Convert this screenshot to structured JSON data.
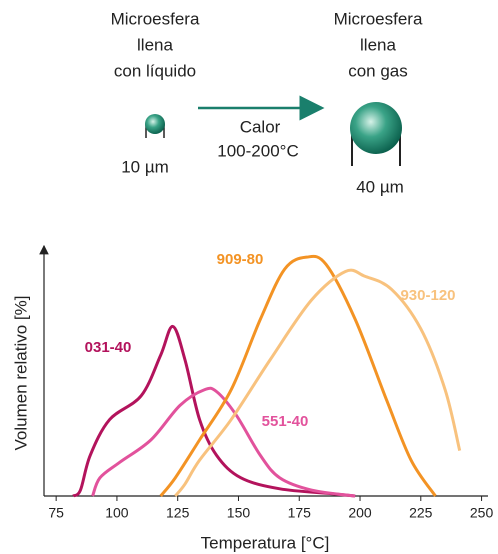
{
  "diagram": {
    "left_label": [
      "Microesfera",
      "llena",
      "con líquido"
    ],
    "right_label": [
      "Microesfera",
      "llena",
      "con gas"
    ],
    "arrow_label": [
      "Calor",
      "100-200°C"
    ],
    "left_size": "10 µm",
    "right_size": "40 µm"
  },
  "chart_data": {
    "type": "line",
    "xlabel": "Temperatura [°C]",
    "ylabel": "Volumen relativo [%]",
    "xlim": [
      70,
      251
    ],
    "ylim": [
      0,
      103
    ],
    "xticks": [
      75,
      100,
      125,
      150,
      175,
      200,
      225,
      250
    ],
    "series": [
      {
        "name": "031-40",
        "color": "#b3135c",
        "x": [
          82,
          85,
          89,
          97,
          110,
          118,
          123,
          128,
          134,
          141,
          151,
          167,
          188,
          198
        ],
        "values": [
          0,
          2.5,
          17,
          32,
          42,
          59,
          71,
          57,
          32,
          17,
          7.6,
          3,
          1,
          0
        ]
      },
      {
        "name": "551-40",
        "color": "#e2529c",
        "x": [
          90,
          93,
          101,
          114,
          126,
          136,
          141,
          149,
          159,
          167,
          180,
          198
        ],
        "values": [
          0,
          7.6,
          14,
          23.5,
          38,
          44.5,
          43.7,
          34,
          17,
          7.6,
          2.5,
          0
        ]
      },
      {
        "name": "909-80",
        "color": "#f39324",
        "x": [
          118,
          124,
          134,
          147,
          159,
          169,
          178,
          186,
          198,
          211,
          221,
          231
        ],
        "values": [
          0,
          7.6,
          23.5,
          44.5,
          74,
          95,
          100,
          97,
          74,
          40,
          15,
          0
        ]
      },
      {
        "name": "930-120",
        "color": "#f8c27e",
        "x": [
          124,
          128,
          134,
          147,
          163,
          180,
          194,
          202,
          213,
          225,
          235,
          241
        ],
        "values": [
          0,
          5,
          15,
          32,
          57,
          82,
          94,
          92,
          86.5,
          70,
          44.5,
          19
        ]
      }
    ]
  }
}
